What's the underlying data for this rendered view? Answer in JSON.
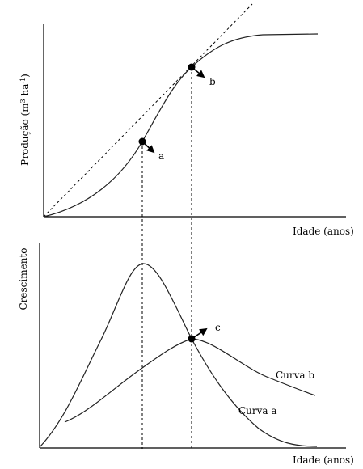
{
  "top_panel": {
    "ylabel_main": "Produção (m",
    "ylabel_sup1": "3",
    "ylabel_mid": " ha",
    "ylabel_sup2": "-1",
    "ylabel_end": ")",
    "xlabel": "Idade (anos)",
    "point_a_label": "a",
    "point_b_label": "b"
  },
  "bottom_panel": {
    "ylabel": "Crescimento",
    "xlabel": "Idade (anos)",
    "point_c_label": "c",
    "curve_a_label": "Curva a",
    "curve_b_label": "Curva b"
  },
  "colors": {
    "ink": "#000000",
    "curve": "#222222",
    "background": "#ffffff"
  }
}
